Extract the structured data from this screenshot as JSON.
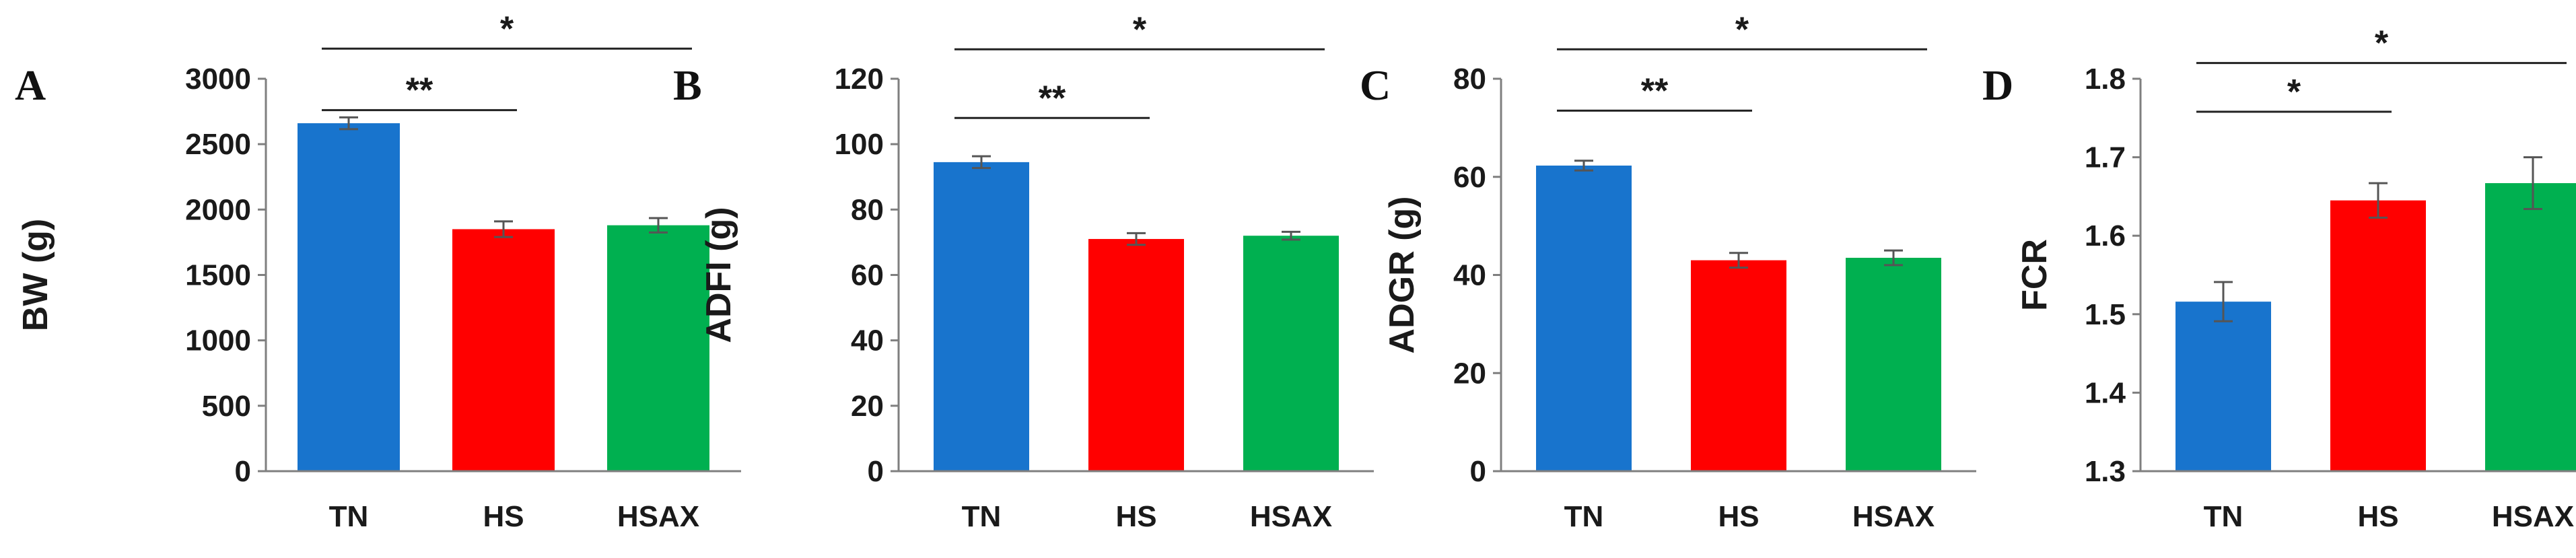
{
  "chart_data": [
    {
      "type": "bar",
      "panel_label": "A",
      "ylabel": "BW (g)",
      "categories": [
        "TN",
        "HS",
        "HSAX"
      ],
      "values": [
        2660,
        1850,
        1880
      ],
      "errors": [
        45,
        60,
        55
      ],
      "colors": [
        "#1874cd",
        "#ff0000",
        "#00b050"
      ],
      "ylim": [
        0,
        3000
      ],
      "yticks": [
        0,
        500,
        1000,
        1500,
        2000,
        2500,
        3000
      ],
      "ytick_labels": [
        "0",
        "500",
        "1000",
        "1500",
        "2000",
        "2500",
        "3000"
      ],
      "significance": [
        {
          "from": 0,
          "to": 1,
          "label": "**",
          "level": 2760
        },
        {
          "from": 0,
          "to": 2,
          "label": "*",
          "level": 3230
        }
      ]
    },
    {
      "type": "bar",
      "panel_label": "B",
      "ylabel": "ADFI (g)",
      "categories": [
        "TN",
        "HS",
        "HSAX"
      ],
      "values": [
        94.5,
        71,
        72
      ],
      "errors": [
        1.8,
        1.8,
        1.2
      ],
      "colors": [
        "#1874cd",
        "#ff0000",
        "#00b050"
      ],
      "ylim": [
        0,
        120
      ],
      "yticks": [
        0,
        20,
        40,
        60,
        80,
        100,
        120
      ],
      "ytick_labels": [
        "0",
        "20",
        "40",
        "60",
        "80",
        "100",
        "120"
      ],
      "significance": [
        {
          "from": 0,
          "to": 1,
          "label": "**",
          "level": 108
        },
        {
          "from": 0,
          "to": 2,
          "label": "*",
          "level": 129
        }
      ]
    },
    {
      "type": "bar",
      "panel_label": "C",
      "ylabel": "ADGR (g)",
      "categories": [
        "TN",
        "HS",
        "HSAX"
      ],
      "values": [
        62.3,
        43,
        43.5
      ],
      "errors": [
        1.0,
        1.5,
        1.5
      ],
      "colors": [
        "#1874cd",
        "#ff0000",
        "#00b050"
      ],
      "ylim": [
        0,
        80
      ],
      "yticks": [
        0,
        20,
        40,
        60,
        80
      ],
      "ytick_labels": [
        "0",
        "20",
        "40",
        "60",
        "80"
      ],
      "significance": [
        {
          "from": 0,
          "to": 1,
          "label": "**",
          "level": 73.5
        },
        {
          "from": 0,
          "to": 2,
          "label": "*",
          "level": 86
        }
      ]
    },
    {
      "type": "bar",
      "panel_label": "D",
      "ylabel": "FCR",
      "categories": [
        "TN",
        "HS",
        "HSAX"
      ],
      "values": [
        1.516,
        1.645,
        1.667
      ],
      "errors": [
        0.025,
        0.022,
        0.033
      ],
      "colors": [
        "#1874cd",
        "#ff0000",
        "#00b050"
      ],
      "ylim": [
        1.3,
        1.8
      ],
      "yticks": [
        1.3,
        1.4,
        1.5,
        1.6,
        1.7,
        1.8
      ],
      "ytick_labels": [
        "1.3",
        "1.4",
        "1.5",
        "1.6",
        "1.7",
        "1.8"
      ],
      "significance": [
        {
          "from": 0,
          "to": 1,
          "label": "*",
          "level": 1.758
        },
        {
          "from": 0,
          "to": 2,
          "label": "*",
          "level": 1.82
        }
      ]
    }
  ]
}
